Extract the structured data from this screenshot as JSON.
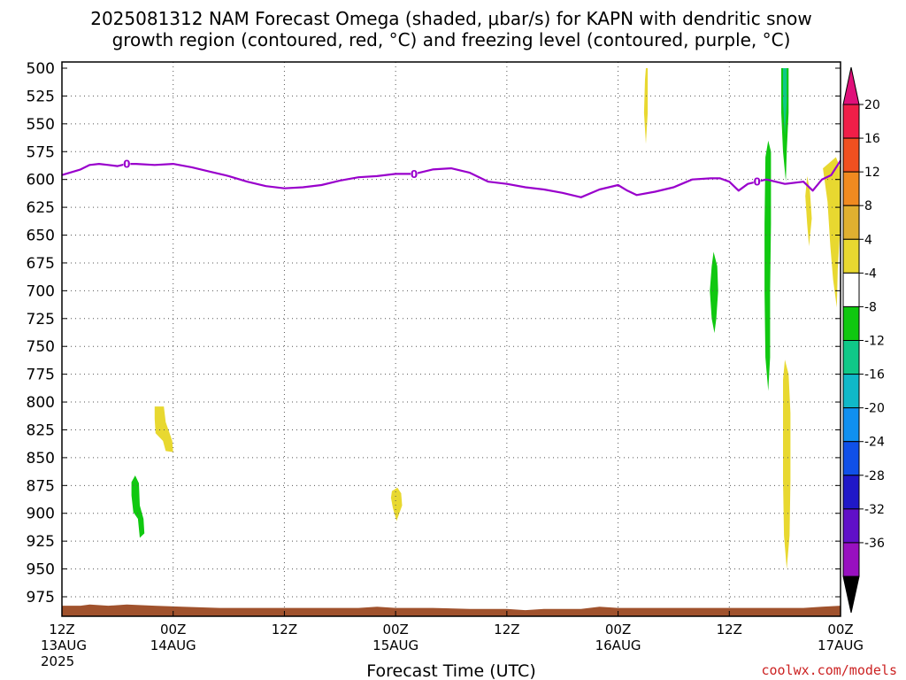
{
  "chart_data": {
    "type": "contour",
    "title_line1": "2025081312 NAM Forecast Omega (shaded, μbar/s) for KAPN with dendritic snow",
    "title_line2": "growth region (contoured, red, °C) and freezing level (contoured, purple, °C)",
    "xlabel": "Forecast Time (UTC)",
    "credit": "coolwx.com/models",
    "xrange_hours": [
      0,
      84
    ],
    "yrange_hpa": [
      500,
      1000
    ],
    "y_ticks": [
      500,
      525,
      550,
      575,
      600,
      625,
      650,
      675,
      700,
      725,
      750,
      775,
      800,
      825,
      850,
      875,
      900,
      925,
      950,
      975
    ],
    "x_ticks": [
      {
        "hour": 0,
        "line1": "12Z",
        "line2": "13AUG",
        "line3": "2025"
      },
      {
        "hour": 12,
        "line1": "00Z",
        "line2": "14AUG",
        "line3": ""
      },
      {
        "hour": 24,
        "line1": "12Z",
        "line2": "",
        "line3": ""
      },
      {
        "hour": 36,
        "line1": "00Z",
        "line2": "15AUG",
        "line3": ""
      },
      {
        "hour": 48,
        "line1": "12Z",
        "line2": "",
        "line3": ""
      },
      {
        "hour": 60,
        "line1": "00Z",
        "line2": "16AUG",
        "line3": ""
      },
      {
        "hour": 72,
        "line1": "12Z",
        "line2": "",
        "line3": ""
      },
      {
        "hour": 84,
        "line1": "00Z",
        "line2": "17AUG",
        "line3": ""
      }
    ],
    "grid": true,
    "colorbar": {
      "labels": [
        "20",
        "16",
        "12",
        "8",
        "4",
        "-4",
        "-8",
        "-12",
        "-16",
        "-20",
        "-24",
        "-28",
        "-32",
        "-36"
      ],
      "colors": [
        "#f01e48",
        "#f05020",
        "#f08a20",
        "#e0b030",
        "#e8d830",
        "#ffffff",
        "#10c810",
        "#10c888",
        "#10b8c8",
        "#1090f0",
        "#1050e8",
        "#2018c8",
        "#6010c8",
        "#9810c0",
        "#a0a0a0"
      ],
      "top_arrow_color": "#e0107a",
      "bottom_arrow_color": "#000000"
    },
    "freezing_level": {
      "color": "#9900cc",
      "label": "0",
      "label_positions": [
        {
          "hour": 7.0,
          "hpa": 586
        },
        {
          "hour": 38.0,
          "hpa": 595
        },
        {
          "hour": 75.0,
          "hpa": 602
        }
      ],
      "points": [
        [
          0,
          596
        ],
        [
          2,
          591
        ],
        [
          3,
          587
        ],
        [
          4,
          586
        ],
        [
          5,
          587
        ],
        [
          6,
          588
        ],
        [
          7,
          586
        ],
        [
          8,
          586
        ],
        [
          10,
          587
        ],
        [
          12,
          586
        ],
        [
          14,
          589
        ],
        [
          16,
          593
        ],
        [
          18,
          597
        ],
        [
          20,
          602
        ],
        [
          22,
          606
        ],
        [
          24,
          608
        ],
        [
          26,
          607
        ],
        [
          28,
          605
        ],
        [
          30,
          601
        ],
        [
          32,
          598
        ],
        [
          34,
          597
        ],
        [
          36,
          595
        ],
        [
          38,
          595
        ],
        [
          40,
          591
        ],
        [
          42,
          590
        ],
        [
          44,
          594
        ],
        [
          46,
          602
        ],
        [
          48,
          604
        ],
        [
          50,
          607
        ],
        [
          52,
          609
        ],
        [
          54,
          612
        ],
        [
          56,
          616
        ],
        [
          58,
          609
        ],
        [
          60,
          605
        ],
        [
          61,
          610
        ],
        [
          62,
          614
        ],
        [
          64,
          611
        ],
        [
          66,
          607
        ],
        [
          68,
          600
        ],
        [
          70,
          599
        ],
        [
          71,
          599
        ],
        [
          72,
          602
        ],
        [
          73,
          610
        ],
        [
          74,
          604
        ],
        [
          75,
          602
        ],
        [
          76,
          600
        ],
        [
          78,
          604
        ],
        [
          80,
          602
        ],
        [
          81,
          610
        ],
        [
          82,
          600
        ],
        [
          83,
          596
        ],
        [
          84,
          583
        ]
      ]
    },
    "omega_regions": [
      {
        "value": -8,
        "color": "#10c810",
        "points": [
          [
            7.5,
            872
          ],
          [
            7.9,
            866
          ],
          [
            8.3,
            873
          ],
          [
            8.4,
            893
          ],
          [
            8.8,
            905
          ],
          [
            8.9,
            918
          ],
          [
            8.4,
            922
          ],
          [
            8.2,
            905
          ],
          [
            7.7,
            899
          ],
          [
            7.5,
            884
          ]
        ]
      },
      {
        "value": 4,
        "color": "#e8d830",
        "points": [
          [
            10.0,
            804
          ],
          [
            11.0,
            804
          ],
          [
            11.2,
            818
          ],
          [
            11.9,
            835
          ],
          [
            12.0,
            845
          ],
          [
            11.2,
            844
          ],
          [
            10.9,
            835
          ],
          [
            10.1,
            828
          ],
          [
            10.0,
            815
          ]
        ]
      },
      {
        "value": 4,
        "color": "#e8d830",
        "points": [
          [
            35.6,
            880
          ],
          [
            36.2,
            877
          ],
          [
            36.6,
            882
          ],
          [
            36.7,
            893
          ],
          [
            36.1,
            907
          ],
          [
            35.7,
            895
          ],
          [
            35.5,
            886
          ]
        ]
      },
      {
        "value": 4,
        "color": "#e8d830",
        "points": [
          [
            63.0,
            500
          ],
          [
            63.2,
            500
          ],
          [
            63.2,
            540
          ],
          [
            63.0,
            568
          ],
          [
            62.8,
            540
          ],
          [
            62.9,
            510
          ]
        ]
      },
      {
        "value": -8,
        "color": "#10c810",
        "points": [
          [
            70.3,
            665
          ],
          [
            70.7,
            678
          ],
          [
            70.8,
            700
          ],
          [
            70.6,
            725
          ],
          [
            70.4,
            738
          ],
          [
            70.1,
            725
          ],
          [
            69.9,
            700
          ],
          [
            70.1,
            678
          ]
        ]
      },
      {
        "value": -8,
        "color": "#10c810",
        "points": [
          [
            76.2,
            565
          ],
          [
            76.5,
            575
          ],
          [
            76.5,
            640
          ],
          [
            76.4,
            700
          ],
          [
            76.4,
            760
          ],
          [
            76.2,
            790
          ],
          [
            75.9,
            760
          ],
          [
            75.8,
            700
          ],
          [
            75.8,
            640
          ],
          [
            75.9,
            580
          ]
        ]
      },
      {
        "value": -8,
        "color": "#10c810",
        "points": [
          [
            77.6,
            500
          ],
          [
            78.4,
            500
          ],
          [
            78.4,
            540
          ],
          [
            78.2,
            575
          ],
          [
            78.1,
            602
          ],
          [
            77.8,
            575
          ],
          [
            77.6,
            540
          ]
        ]
      },
      {
        "value": -12,
        "color": "#10c888",
        "points": [
          [
            77.8,
            500
          ],
          [
            78.2,
            500
          ],
          [
            78.2,
            530
          ],
          [
            78.0,
            560
          ],
          [
            77.8,
            530
          ]
        ]
      },
      {
        "value": 4,
        "color": "#e8d830",
        "points": [
          [
            78.0,
            762
          ],
          [
            78.4,
            775
          ],
          [
            78.6,
            810
          ],
          [
            78.6,
            870
          ],
          [
            78.5,
            920
          ],
          [
            78.2,
            950
          ],
          [
            77.9,
            920
          ],
          [
            77.8,
            870
          ],
          [
            77.8,
            810
          ],
          [
            77.8,
            780
          ]
        ]
      },
      {
        "value": 4,
        "color": "#e8d830",
        "points": [
          [
            82.1,
            590
          ],
          [
            83.5,
            580
          ],
          [
            84.0,
            590
          ],
          [
            84.0,
            640
          ],
          [
            83.7,
            680
          ],
          [
            83.6,
            715
          ],
          [
            83.2,
            690
          ],
          [
            82.9,
            660
          ],
          [
            82.6,
            620
          ]
        ]
      },
      {
        "value": 4,
        "color": "#e8d830",
        "points": [
          [
            80.4,
            597
          ],
          [
            80.7,
            610
          ],
          [
            80.9,
            635
          ],
          [
            80.6,
            660
          ],
          [
            80.4,
            640
          ],
          [
            80.2,
            615
          ]
        ]
      }
    ],
    "terrain": {
      "color": "#a0522d",
      "top_points": [
        [
          0,
          983
        ],
        [
          2,
          983
        ],
        [
          3,
          982
        ],
        [
          5,
          983
        ],
        [
          7,
          982
        ],
        [
          10,
          983
        ],
        [
          13,
          984
        ],
        [
          17,
          985
        ],
        [
          21,
          985
        ],
        [
          24,
          985
        ],
        [
          28,
          985
        ],
        [
          32,
          985
        ],
        [
          34,
          984
        ],
        [
          36,
          985
        ],
        [
          40,
          985
        ],
        [
          44,
          986
        ],
        [
          48,
          986
        ],
        [
          50,
          987
        ],
        [
          52,
          986
        ],
        [
          56,
          986
        ],
        [
          58,
          984
        ],
        [
          60,
          985
        ],
        [
          64,
          985
        ],
        [
          70,
          985
        ],
        [
          76,
          985
        ],
        [
          80,
          985
        ],
        [
          82,
          984
        ],
        [
          84,
          983
        ]
      ]
    }
  }
}
